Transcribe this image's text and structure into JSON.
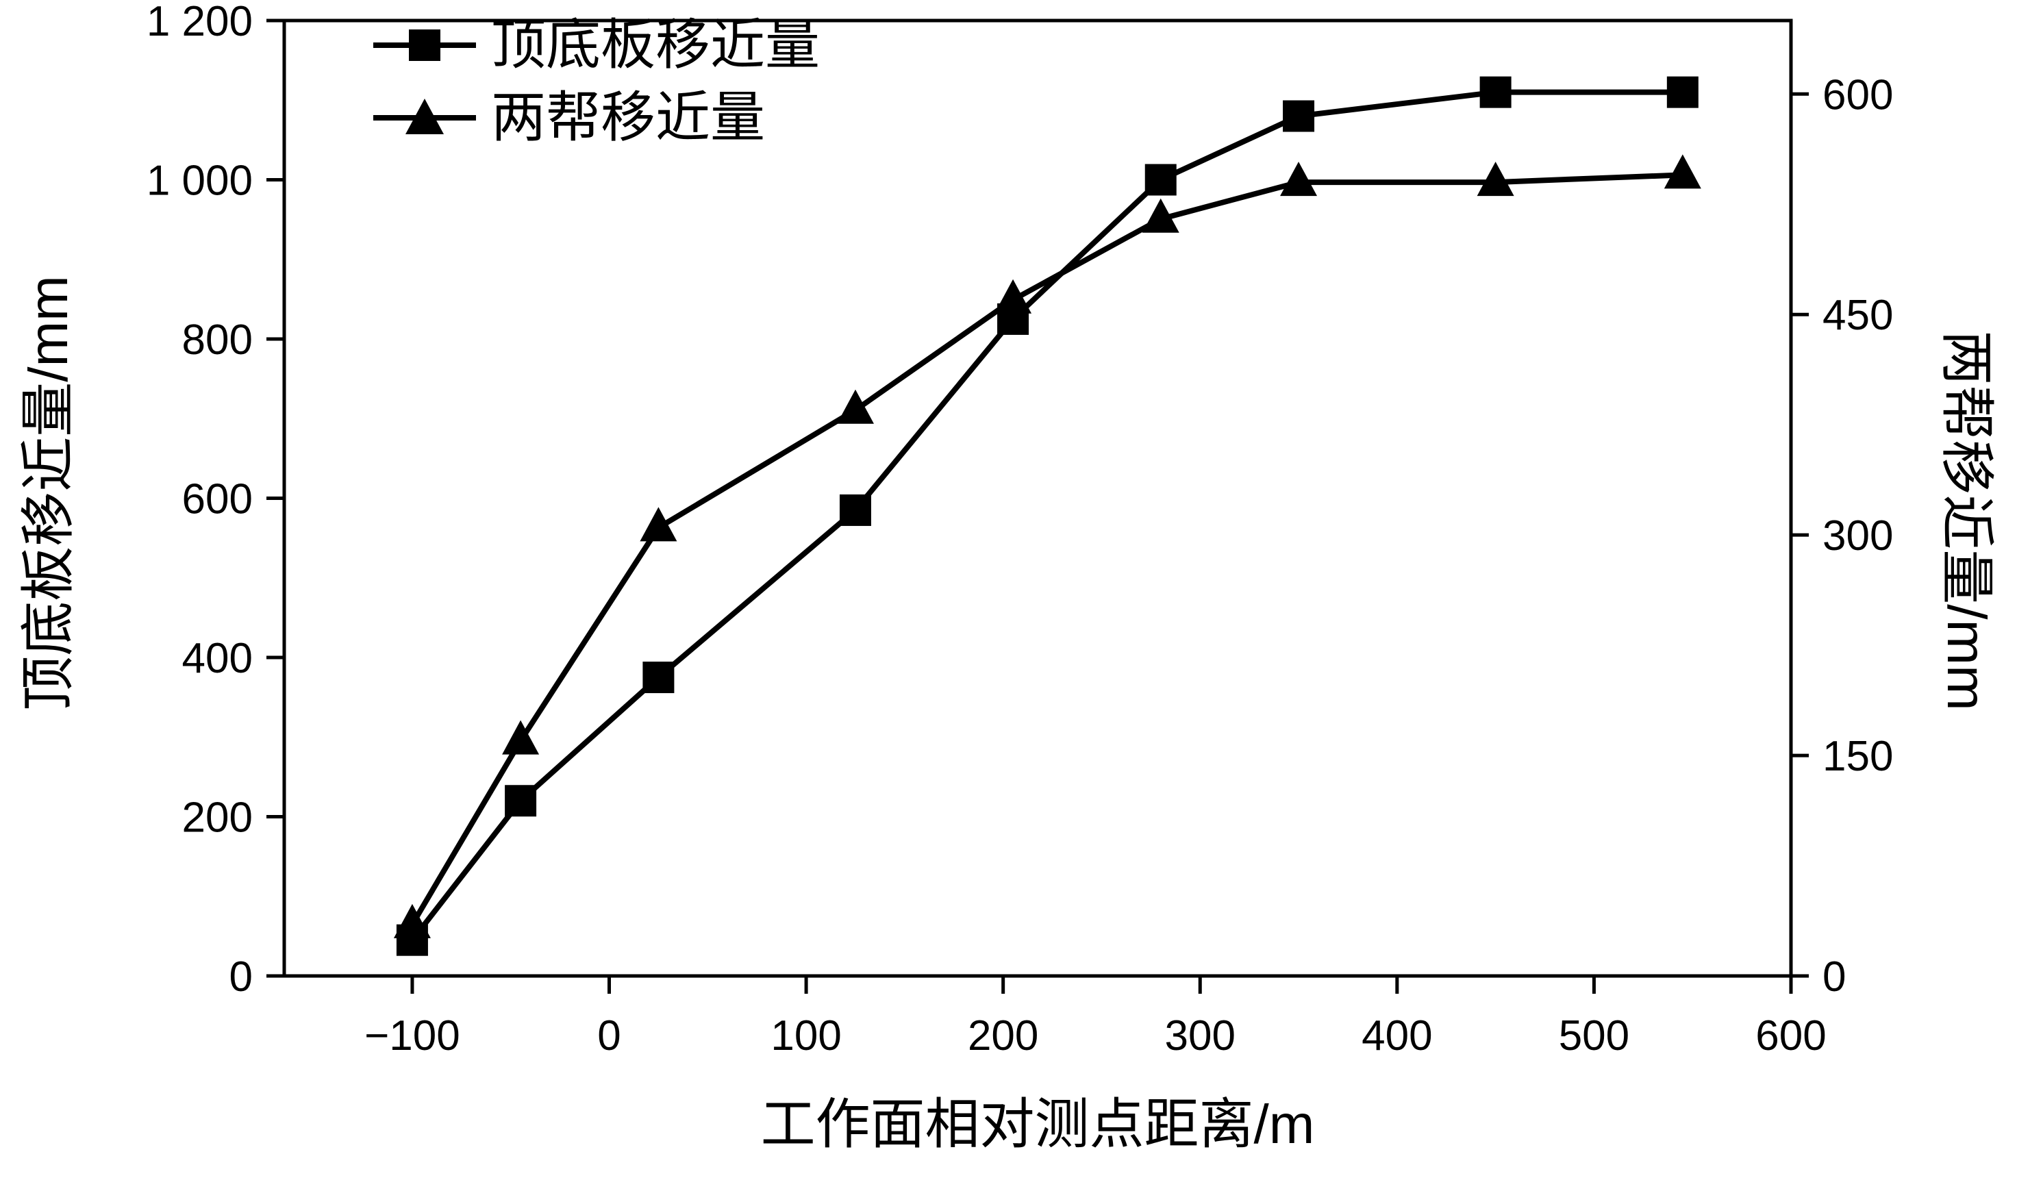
{
  "chart_data": {
    "type": "line",
    "x": [
      -100,
      -45,
      25,
      125,
      205,
      280,
      350,
      450,
      545
    ],
    "series": [
      {
        "name": "顶底板移近量",
        "axis": "left",
        "marker": "square",
        "color": "#000000",
        "values": [
          45,
          220,
          375,
          585,
          825,
          1000,
          1080,
          1110,
          1110
        ]
      },
      {
        "name": "两帮移近量",
        "axis": "right",
        "marker": "triangle",
        "color": "#000000",
        "values": [
          35,
          160,
          305,
          385,
          460,
          515,
          540,
          540,
          545
        ]
      }
    ],
    "xlabel": "工作面相对测点距离/m",
    "ylabel_left": "顶底板移近量/mm",
    "ylabel_right": "两帮移近量/mm",
    "xlim": [
      -165,
      600
    ],
    "ylim_left": [
      0,
      1200
    ],
    "ylim_right": [
      0,
      650
    ],
    "x_ticks": [
      -100,
      0,
      100,
      200,
      300,
      400,
      500,
      600
    ],
    "x_tick_labels": [
      "−100",
      "0",
      "100",
      "200",
      "300",
      "400",
      "500",
      "600"
    ],
    "y_left_ticks": [
      0,
      200,
      400,
      600,
      800,
      1000,
      1200
    ],
    "y_left_tick_labels": [
      "0",
      "200",
      "400",
      "600",
      "800",
      "1 000",
      "1 200"
    ],
    "y_right_ticks": [
      0,
      150,
      300,
      450,
      600
    ],
    "y_right_tick_labels": [
      "0",
      "150",
      "300",
      "450",
      "600"
    ],
    "grid": false,
    "legend_position": "top-left",
    "line_color": "#000000",
    "background": "#ffffff"
  }
}
